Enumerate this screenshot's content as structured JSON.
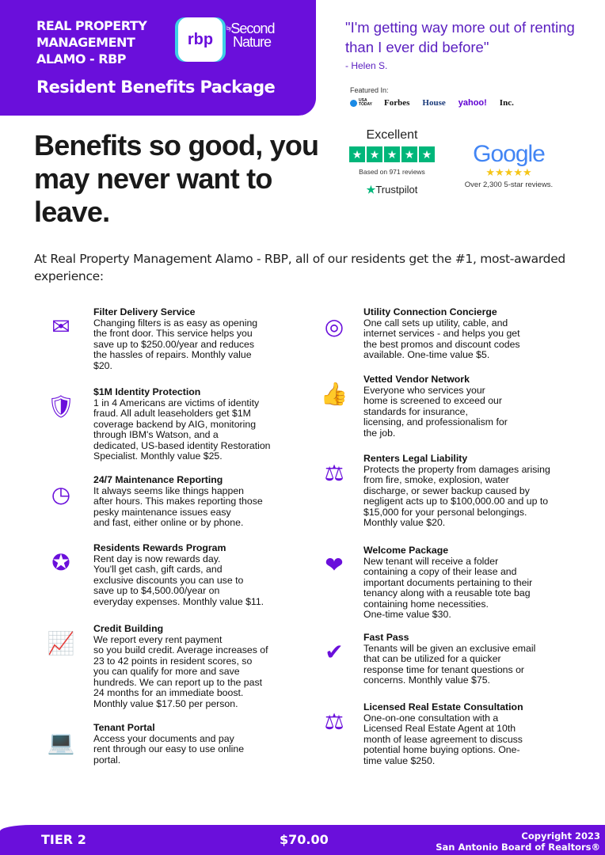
{
  "header": {
    "org_name": [
      "REAL PROPERTY",
      "MANAGEMENT",
      "ALAMO - RBP"
    ],
    "logo_text": "rbp",
    "logo_by": "by",
    "logo_brand": [
      "Second",
      "Nature"
    ],
    "subtitle": "Resident Benefits Package"
  },
  "testimonial": {
    "quote": "\"I'm getting way more out of renting than I ever did before\"",
    "author": "- Helen S."
  },
  "featured": {
    "label": "Featured In:",
    "outlets": [
      "USA TODAY",
      "Forbes",
      "House",
      "yahoo!",
      "Inc."
    ]
  },
  "headline": "Benefits so good, you may never want to leave.",
  "trustpilot": {
    "rating": "Excellent",
    "stars": 5,
    "based_on": "Based on 971 reviews",
    "brand": "Trustpilot",
    "color": "#00b67a"
  },
  "google": {
    "brand": "Google",
    "stars": "★★★★★",
    "reviews": "Over 2,300 5-star reviews."
  },
  "intro": "At Real Property Management Alamo - RBP, all of our residents get the #1, most-awarded experience:",
  "benefits_left": [
    {
      "icon": "filter-delivery-icon",
      "title": "Filter Delivery Service",
      "lines": [
        "Changing filters is as easy as opening",
        "the front door. This service helps you",
        "save up to $250.00/year and reduces",
        "the hassles of repairs. Monthly value",
        "$20."
      ]
    },
    {
      "icon": "identity-shield-icon",
      "title": "$1M Identity Protection",
      "lines": [
        "1 in 4 Americans are victims of identity",
        "fraud. All adult leaseholders get $1M",
        "coverage backend by AIG, monitoring",
        "through IBM's Watson, and a",
        "dedicated, US-based identity Restoration",
        "Specialist. Monthly value $25."
      ]
    },
    {
      "icon": "clock-icon",
      "title": "24/7 Maintenance Reporting",
      "lines": [
        "It always seems like things happen",
        "after hours. This makes reporting those",
        "pesky maintenance issues easy",
        "and fast, either online or by phone."
      ]
    },
    {
      "icon": "award-ribbon-icon",
      "title": "Residents Rewards Program",
      "lines": [
        "Rent day is now rewards day.",
        "You'll get cash, gift cards, and",
        "exclusive discounts you can use to",
        "save up to $4,500.00/year on",
        "everyday expenses. Monthly value $11."
      ]
    },
    {
      "icon": "credit-chart-icon",
      "title": "Credit Building",
      "lines": [
        "We report every rent payment",
        "so you build credit. Average increases of",
        "23 to 42 points in resident scores, so",
        "you can qualify for more and save",
        "hundreds. We can report up to the past",
        "24 months for an immediate boost.",
        "Monthly value $17.50 per person."
      ]
    },
    {
      "icon": "laptop-icon",
      "title": "Tenant Portal",
      "lines": [
        "Access your documents and pay",
        "rent through our easy to use online",
        "portal."
      ]
    }
  ],
  "benefits_right": [
    {
      "icon": "utility-gauge-icon",
      "title": "Utility Connection Concierge",
      "lines": [
        "One call sets up utility, cable, and",
        "internet services - and helps you get",
        "the best promos and discount codes",
        "available. One-time value $5."
      ]
    },
    {
      "icon": "thumbs-up-icon",
      "title": "Vetted Vendor Network",
      "lines": [
        "Everyone who services your",
        "home is screened to exceed our",
        "standards for insurance,",
        "licensing, and professionalism for",
        "the job."
      ]
    },
    {
      "icon": "gavel-icon",
      "title": "Renters Legal Liability",
      "lines": [
        "Protects the property from damages arising",
        "from fire, smoke, explosion, water",
        "discharge, or sewer backup caused by",
        "negligent acts up to $100,000.00 and up to",
        "$15,000 for your personal belongings.",
        "Monthly value $20."
      ]
    },
    {
      "icon": "package-heart-icon",
      "title": "Welcome Package",
      "lines": [
        "New tenant will receive a folder",
        "containing a copy of their lease and",
        "important documents pertaining to their",
        "tenancy along with a reusable tote bag",
        "containing home necessities.",
        "One-time value $30."
      ]
    },
    {
      "icon": "fast-pass-icon",
      "title": "Fast Pass",
      "lines": [
        "Tenants will be given an exclusive email",
        "that can be utilized for a quicker",
        "response time for tenant questions or",
        "concerns. Monthly value $75."
      ]
    },
    {
      "icon": "scales-icon",
      "title": "Licensed Real Estate Consultation",
      "lines": [
        "One-on-one consultation with a",
        "Licensed Real Estate Agent at 10th",
        "month of lease agreement to discuss",
        "potential home buying options. One-",
        "time value $250."
      ]
    }
  ],
  "footer": {
    "tier": "TIER 2",
    "price": "$70.00",
    "copyright": "Copyright 2023",
    "board": "San Antonio Board of Realtors®"
  },
  "colors": {
    "brand_purple": "#6a0fdb",
    "accent_cyan": "#3fd0e6"
  }
}
